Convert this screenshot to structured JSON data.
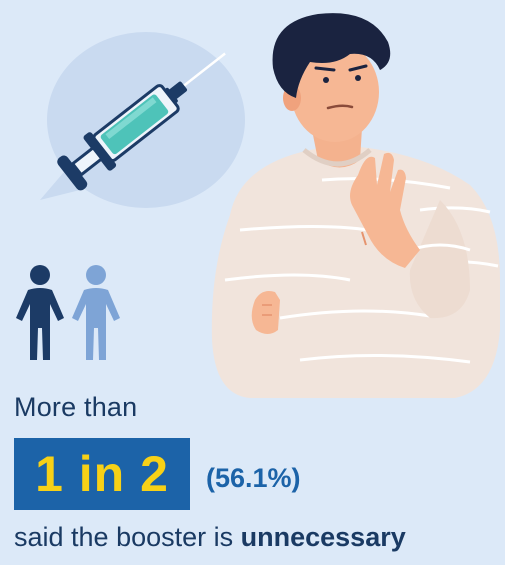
{
  "lead_text": "More than",
  "stat": {
    "main": "1 in 2",
    "percent": "(56.1%)"
  },
  "tail": {
    "prefix": "said the booster is ",
    "emphasis": "unnecessary"
  },
  "icons": [
    "syringe-icon",
    "people-icon",
    "person-refusing-illustration"
  ],
  "colors": {
    "background": "#dce9f8",
    "stat_box": "#1c63a8",
    "stat_highlight": "#f7d117",
    "text": "#1a3a63"
  }
}
